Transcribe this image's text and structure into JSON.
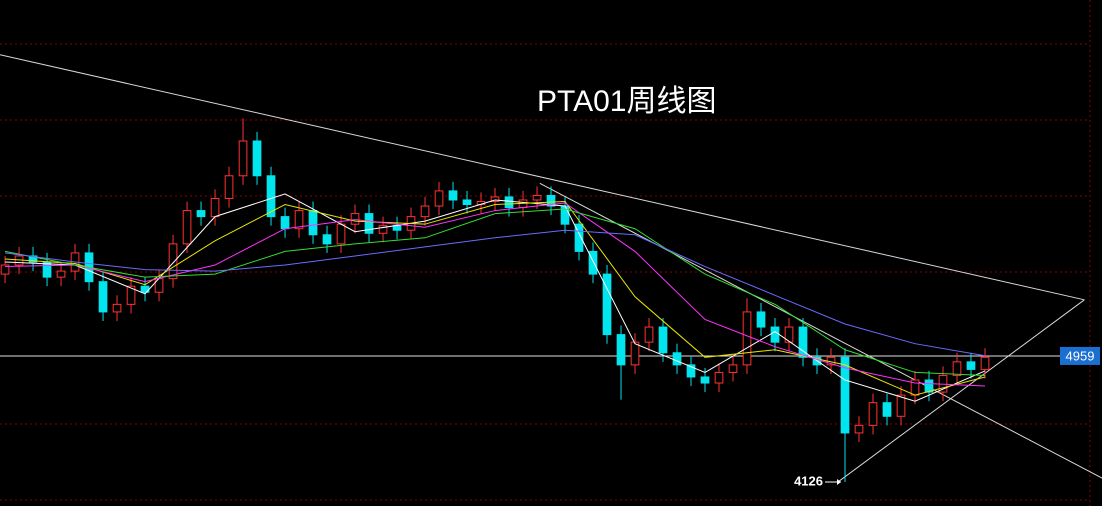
{
  "chart_data": {
    "type": "candlestick",
    "title": "PTA01周线图",
    "up_color": "#ff3232",
    "down_color": "#00e5ee",
    "xlim": [
      -0.36,
      77.5
    ],
    "ylim": [
      3967,
      7312
    ],
    "open": [
      5500,
      5560,
      5620,
      5580,
      5480,
      5520,
      5640,
      5450,
      5250,
      5300,
      5420,
      5380,
      5470,
      5700,
      5920,
      5880,
      6000,
      6150,
      6380,
      6150,
      5880,
      5800,
      5920,
      5760,
      5700,
      5830,
      5900,
      5770,
      5820,
      5790,
      5880,
      5950,
      6050,
      5990,
      5960,
      5980,
      6010,
      5940,
      5990,
      6020,
      5950,
      5830,
      5650,
      5500,
      5100,
      4900,
      5050,
      5150,
      4980,
      4900,
      4820,
      4780,
      4850,
      4900,
      5250,
      5150,
      5050,
      5150,
      4950,
      4900,
      4950,
      4450,
      4500,
      4650,
      4560,
      4700,
      4800,
      4720,
      4830,
      4920,
      4870
    ],
    "high": [
      5620,
      5680,
      5680,
      5640,
      5580,
      5700,
      5700,
      5510,
      5360,
      5480,
      5480,
      5530,
      5760,
      5980,
      5980,
      6060,
      6210,
      6530,
      6440,
      6210,
      5940,
      5980,
      5980,
      5820,
      5890,
      5960,
      5960,
      5880,
      5880,
      5940,
      6010,
      6110,
      6110,
      6050,
      6040,
      6070,
      6070,
      6050,
      6080,
      6080,
      6010,
      5890,
      5710,
      5560,
      5160,
      5110,
      5210,
      5210,
      5040,
      4960,
      4880,
      4910,
      4960,
      5340,
      5310,
      5210,
      5210,
      5210,
      5010,
      5010,
      5010,
      4560,
      4710,
      4710,
      4760,
      4860,
      4860,
      4890,
      4980,
      4980,
      5010
    ],
    "low": [
      5440,
      5500,
      5520,
      5420,
      5420,
      5460,
      5390,
      5190,
      5190,
      5240,
      5320,
      5320,
      5410,
      5640,
      5820,
      5820,
      5940,
      6090,
      6090,
      5820,
      5740,
      5740,
      5700,
      5640,
      5640,
      5770,
      5710,
      5710,
      5730,
      5730,
      5820,
      5890,
      5930,
      5900,
      5900,
      5920,
      5880,
      5880,
      5930,
      5890,
      5770,
      5590,
      5440,
      5040,
      4670,
      4840,
      4990,
      4920,
      4840,
      4760,
      4720,
      4720,
      4790,
      4840,
      5090,
      4990,
      4990,
      4890,
      4840,
      4840,
      4126,
      4390,
      4440,
      4500,
      4500,
      4640,
      4660,
      4660,
      4770,
      4810,
      4810
    ],
    "close": [
      5560,
      5620,
      5580,
      5480,
      5520,
      5640,
      5450,
      5250,
      5300,
      5420,
      5380,
      5470,
      5700,
      5920,
      5880,
      6000,
      6150,
      6380,
      6150,
      5880,
      5800,
      5920,
      5760,
      5700,
      5830,
      5900,
      5770,
      5820,
      5790,
      5880,
      5950,
      6050,
      5990,
      5960,
      5980,
      6010,
      5940,
      5990,
      6020,
      5950,
      5830,
      5650,
      5500,
      5100,
      4900,
      5050,
      5150,
      4980,
      4900,
      4820,
      4780,
      4850,
      4900,
      5250,
      5150,
      5050,
      5150,
      4950,
      4900,
      4950,
      4450,
      4500,
      4650,
      4560,
      4700,
      4800,
      4720,
      4830,
      4920,
      4870,
      4950
    ],
    "series": [
      {
        "color": "#ffffff",
        "x": [
          0,
          5,
          10,
          15,
          20,
          25,
          30,
          35,
          40,
          45,
          50,
          55,
          60,
          65,
          70
        ],
        "values": [
          5580,
          5560,
          5370,
          5880,
          6030,
          5780,
          5850,
          5990,
          5950,
          5040,
          4850,
          5120,
          4800,
          4660,
          4860
        ]
      },
      {
        "color": "#e6e600",
        "x": [
          0,
          5,
          10,
          15,
          20,
          25,
          30,
          35,
          40,
          45,
          50,
          55,
          60,
          65,
          70
        ],
        "values": [
          5600,
          5570,
          5430,
          5720,
          5960,
          5850,
          5830,
          5960,
          5980,
          5350,
          4950,
          5000,
          4900,
          4700,
          4820
        ]
      },
      {
        "color": "#ff33ff",
        "x": [
          0,
          5,
          10,
          15,
          20,
          25,
          30,
          35,
          40,
          45,
          50,
          55,
          60,
          65,
          70
        ],
        "values": [
          5550,
          5560,
          5450,
          5560,
          5800,
          5860,
          5810,
          5920,
          5970,
          5650,
          5200,
          5020,
          4880,
          4780,
          4760
        ]
      },
      {
        "color": "#33dd33",
        "x": [
          0,
          5,
          10,
          15,
          20,
          25,
          30,
          35,
          40,
          45,
          50,
          55,
          60,
          65,
          70
        ],
        "values": [
          5650,
          5560,
          5480,
          5500,
          5650,
          5700,
          5740,
          5900,
          5930,
          5800,
          5500,
          5300,
          5000,
          4850,
          4830
        ]
      },
      {
        "color": "#6b6bff",
        "x": [
          0,
          5,
          10,
          15,
          20,
          25,
          30,
          35,
          40,
          45,
          50,
          55,
          60,
          65,
          70
        ],
        "values": [
          5640,
          5580,
          5530,
          5520,
          5560,
          5620,
          5680,
          5740,
          5790,
          5760,
          5550,
          5360,
          5170,
          5040,
          4960
        ]
      }
    ],
    "trend_lines": [
      {
        "x": [
          -0.36,
          77.1
        ],
        "values": [
          6950,
          5330
        ]
      },
      {
        "x": [
          38.2,
          78.4
        ],
        "values": [
          6100,
          4150
        ]
      },
      {
        "x": [
          59.5,
          77.1
        ],
        "values": [
          4126,
          5330
        ]
      }
    ],
    "last_price": 4959
  }
}
